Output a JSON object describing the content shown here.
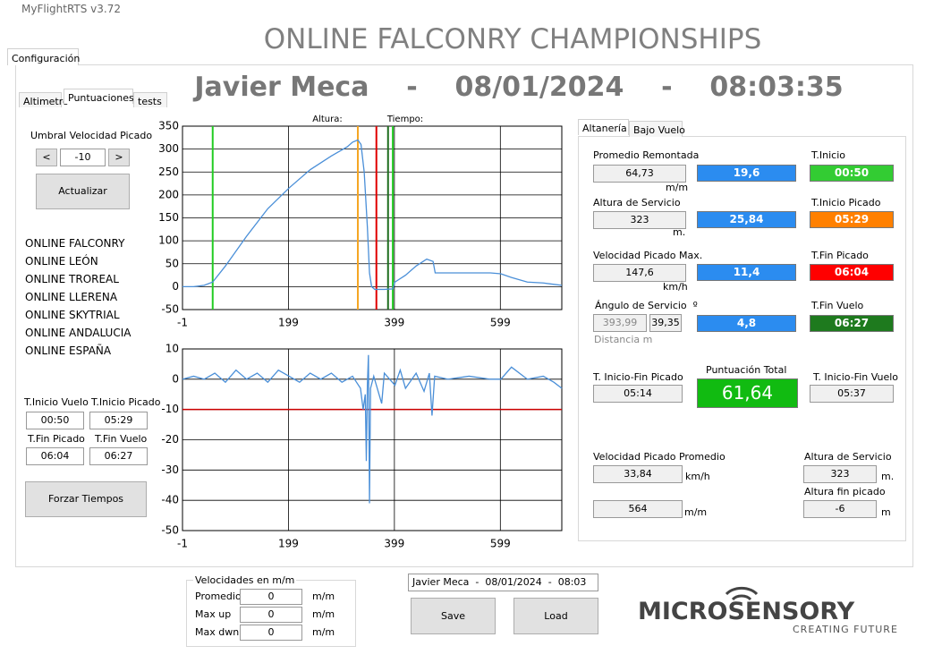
{
  "app_title": "MyFlightRTS v3.72",
  "header": {
    "title": "ONLINE FALCONRY CHAMPIONSHIPS",
    "subtitle": "Javier Meca    -    08/01/2024    -    08:03:35"
  },
  "tabs": {
    "main": "Configuración",
    "left": [
      "Altimetro",
      "Puntuaciones",
      "tests"
    ],
    "right": [
      "Altanería",
      "Bajo Vuelo"
    ]
  },
  "left_panel": {
    "threshold_label": "Umbral Velocidad Picado",
    "threshold_prev": "<",
    "threshold_value": "-10",
    "threshold_next": ">",
    "update_button": "Actualizar",
    "competitions": [
      "ONLINE FALCONRY",
      "ONLINE LEÓN",
      "ONLINE TROREAL",
      "ONLINE LLERENA",
      "ONLINE SKYTRIAL",
      "ONLINE ANDALUCIA",
      "ONLINE ESPAÑA"
    ],
    "times": [
      {
        "label": "T.Inicio Vuelo",
        "value": "00:50"
      },
      {
        "label": "T.Inicio Picado",
        "value": "05:29"
      },
      {
        "label": "T.Fin Picado",
        "value": "06:04"
      },
      {
        "label": "T.Fin Vuelo",
        "value": "06:27"
      }
    ],
    "force_button": "Forzar Tiempos"
  },
  "chart_data": [
    {
      "type": "line",
      "annotations": [
        "Altura:",
        "Tiempo:"
      ],
      "xlim": [
        -1,
        715
      ],
      "ylim": [
        -50,
        350
      ],
      "xticks": [
        -1,
        199,
        399,
        599
      ],
      "yticks": [
        -50,
        0,
        50,
        100,
        150,
        200,
        250,
        300,
        350
      ],
      "grid": true,
      "series": [
        {
          "color": "#4a8fd8",
          "x": [
            -1,
            20,
            40,
            56,
            80,
            120,
            160,
            200,
            240,
            280,
            310,
            320,
            330,
            336,
            342,
            348,
            352,
            356,
            362,
            380,
            396,
            400,
            420,
            440,
            460,
            472,
            476,
            500,
            540,
            580,
            600,
            620,
            650,
            680,
            700,
            715
          ],
          "values": [
            0,
            0,
            3,
            10,
            45,
            110,
            170,
            215,
            255,
            285,
            305,
            315,
            320,
            310,
            250,
            130,
            30,
            0,
            -6,
            -6,
            -5,
            10,
            25,
            45,
            60,
            55,
            30,
            30,
            30,
            30,
            28,
            20,
            10,
            8,
            5,
            3
          ]
        }
      ],
      "vlines": [
        {
          "x": 56,
          "color": "#22cc22"
        },
        {
          "x": 330,
          "color": "#f5a623"
        },
        {
          "x": 365,
          "color": "#e00000"
        },
        {
          "x": 387,
          "color": "#1e6e1e"
        },
        {
          "x": 396,
          "color": "#22cc22"
        }
      ]
    },
    {
      "type": "line",
      "xlim": [
        -1,
        715
      ],
      "ylim": [
        -50,
        10
      ],
      "xticks": [
        -1,
        199,
        399,
        599
      ],
      "yticks": [
        -50,
        -40,
        -30,
        -20,
        -10,
        0,
        10
      ],
      "grid": true,
      "series": [
        {
          "color": "#4a8fd8",
          "x": [
            -1,
            20,
            40,
            60,
            80,
            100,
            120,
            140,
            160,
            180,
            200,
            220,
            240,
            260,
            280,
            300,
            320,
            335,
            340,
            344,
            346,
            348,
            350,
            352,
            354,
            360,
            375,
            380,
            400,
            410,
            420,
            440,
            455,
            465,
            470,
            475,
            500,
            540,
            580,
            600,
            620,
            650,
            680,
            700,
            715
          ],
          "values": [
            0,
            1,
            0,
            2,
            -1,
            3,
            0,
            2,
            -1,
            3,
            1,
            -1,
            2,
            0,
            2,
            -1,
            1,
            -3,
            -10,
            -5,
            -27,
            -2,
            8,
            -41,
            -3,
            1,
            -8,
            2,
            -2,
            3,
            -3,
            2,
            -4,
            2,
            -12,
            1,
            0,
            1,
            0,
            0,
            4,
            0,
            1,
            -1,
            -3
          ]
        }
      ],
      "hlines": [
        {
          "y": -10,
          "color": "#cc0000"
        }
      ]
    }
  ],
  "right_panel": {
    "climb_avg_label": "Promedio Remontada",
    "climb_avg": "64,73",
    "climb_avg_unit": "m/m",
    "climb_score": "19,6",
    "start_label": "T.Inicio",
    "start": "00:50",
    "service_alt_label": "Altura de Servicio",
    "service_alt": "323",
    "service_alt_unit": "m.",
    "service_alt_score": "25,84",
    "dive_start_label": "T.Inicio Picado",
    "dive_start": "05:29",
    "dive_max_label": "Velocidad Picado Max.",
    "dive_max": "147,6",
    "dive_max_unit": "km/h",
    "dive_max_score": "11,4",
    "dive_end_label": "T.Fin Picado",
    "dive_end": "06:04",
    "angle_label": "Ángulo de Servicio  º",
    "distance": "393,99",
    "angle": "39,35",
    "distance_label": "Distancia m",
    "angle_score": "4,8",
    "flight_end_label": "T.Fin Vuelo",
    "flight_end": "06:27",
    "dive_span_label": "T. Inicio-Fin Picado",
    "dive_span": "05:14",
    "total_label": "Puntuación Total",
    "total": "61,64",
    "flight_span_label": "T. Inicio-Fin Vuelo",
    "flight_span": "05:37",
    "dive_avg_label": "Velocidad Picado Promedio",
    "dive_avg": "33,84",
    "dive_avg_unit": "km/h",
    "dive_avg_mm": "564",
    "dive_avg_mm_unit": "m/m",
    "service_alt2_label": "Altura de Servicio",
    "service_alt2": "323",
    "service_alt2_unit": "m.",
    "dive_end_alt_label": "Altura fin picado",
    "dive_end_alt": "-6",
    "dive_end_alt_unit": "m"
  },
  "bottom": {
    "speeds_title": "Velocidades en m/m",
    "speeds": [
      {
        "label": "Promedio",
        "value": "0",
        "unit": "m/m"
      },
      {
        "label": "Max up",
        "value": "0",
        "unit": "m/m"
      },
      {
        "label": "Max dwn",
        "value": "0",
        "unit": "m/m"
      }
    ],
    "session_select": "Javier Meca  -  08/01/2024  -  08:03",
    "save_button": "Save",
    "load_button": "Load",
    "logo": "MICROSENSORY",
    "logo_tagline": "CREATING FUTURE"
  }
}
